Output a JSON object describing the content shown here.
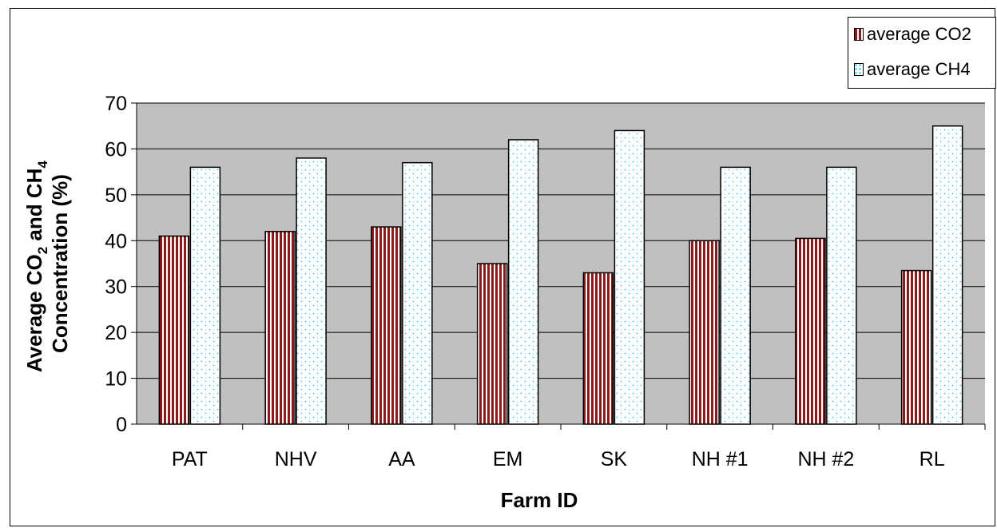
{
  "chart_data": {
    "type": "bar",
    "title": "",
    "xlabel": "Farm ID",
    "ylabel": {
      "line1_prefix": "Average CO",
      "line1_sub1": "2",
      "line1_mid": " and CH",
      "line1_sub2": "4",
      "line2": "Concentration (%)"
    },
    "categories": [
      "PAT",
      "NHV",
      "AA",
      "EM",
      "SK",
      "NH #1",
      "NH #2",
      "RL"
    ],
    "series": [
      {
        "name": "average CO2",
        "values": [
          41,
          42,
          43,
          35,
          33,
          40,
          40.5,
          33.5
        ],
        "color": "#8b1a1a",
        "pattern": "vertical-stripes"
      },
      {
        "name": "average CH4",
        "values": [
          56,
          58,
          57,
          62,
          64,
          56,
          56,
          65
        ],
        "color": "#33c6e6",
        "pattern": "dotted"
      }
    ],
    "ylim": [
      0,
      70
    ],
    "yticks": [
      "0",
      "10",
      "20",
      "30",
      "40",
      "50",
      "60",
      "70"
    ],
    "grid": true,
    "plot_background": "#c0c0c0",
    "legend_position": "top-right"
  }
}
